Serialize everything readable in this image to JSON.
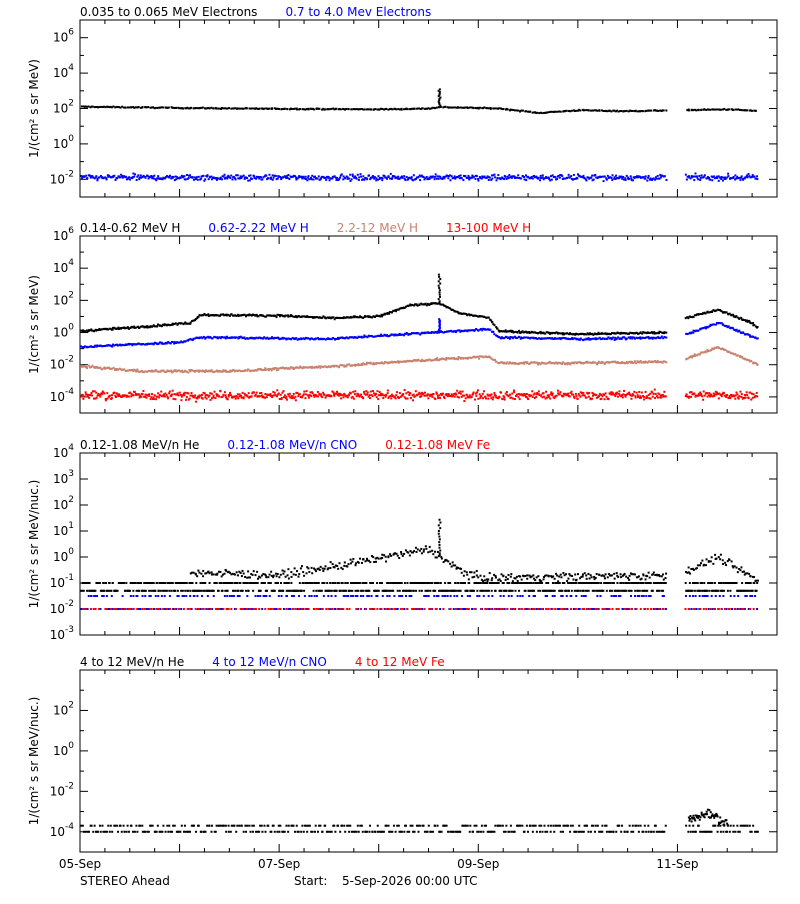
{
  "footer": {
    "spacecraft": "STEREO Ahead",
    "start_label": "Start:",
    "start_value": "5-Sep-2026 00:00 UTC"
  },
  "x_axis": {
    "start_day": "05-Sep",
    "end_day": "12-Sep",
    "labeled_ticks": [
      "05-Sep",
      "07-Sep",
      "09-Sep",
      "11-Sep"
    ],
    "minor_ticks_per_day": 4
  },
  "data_gaps": [
    {
      "from_day": 5.88,
      "to_day": 6.07
    },
    {
      "from_day": 6.8,
      "to_day": 7.0
    }
  ],
  "colors": {
    "black": "#000000",
    "blue": "#0000ff",
    "tan": "#c8826e",
    "red": "#ff0000"
  },
  "chart_data": [
    {
      "type": "scatter",
      "ylabel": "1/(cm² s sr MeV)",
      "yscale": "log",
      "ylim_exp": [
        -3,
        7
      ],
      "tick_exps": [
        -2,
        0,
        2,
        4,
        6
      ],
      "legend": [
        {
          "text": "0.035 to 0.065 MeV Electrons",
          "color": "#000000"
        },
        {
          "text": "0.7 to 4.0 Mev Electrons",
          "color": "#0000ff"
        }
      ],
      "series": [
        {
          "color": "#000000",
          "style": "band",
          "jitter": 0.03,
          "count": 500,
          "profile": [
            [
              0,
              2.1
            ],
            [
              1.5,
              2.0
            ],
            [
              3.0,
              1.95
            ],
            [
              3.5,
              2.0
            ],
            [
              3.6,
              2.08
            ],
            [
              4.2,
              2.0
            ],
            [
              4.6,
              1.75
            ],
            [
              5.0,
              1.9
            ],
            [
              5.5,
              1.85
            ],
            [
              6.0,
              1.9
            ],
            [
              6.5,
              1.95
            ],
            [
              7.0,
              1.8
            ]
          ],
          "spike": {
            "day": 3.6,
            "height": 1.0
          }
        },
        {
          "color": "#0000ff",
          "style": "scatter",
          "jitter": 0.15,
          "count": 800,
          "profile": [
            [
              0,
              -1.9
            ],
            [
              7.0,
              -1.9
            ]
          ]
        }
      ]
    },
    {
      "type": "scatter",
      "ylabel": "1/(cm² s sr MeV)",
      "yscale": "log",
      "ylim_exp": [
        -5,
        6
      ],
      "tick_exps": [
        -4,
        -2,
        0,
        2,
        4,
        6
      ],
      "legend": [
        {
          "text": "0.14-0.62 MeV H",
          "color": "#000000"
        },
        {
          "text": "0.62-2.22 MeV H",
          "color": "#0000ff"
        },
        {
          "text": "2.2-12 MeV H",
          "color": "#c8826e"
        },
        {
          "text": "13-100 MeV H",
          "color": "#ff0000"
        }
      ],
      "series": [
        {
          "color": "#000000",
          "style": "band",
          "jitter": 0.06,
          "count": 700,
          "profile": [
            [
              0,
              0.1
            ],
            [
              0.5,
              0.3
            ],
            [
              1.1,
              0.6
            ],
            [
              1.2,
              1.1
            ],
            [
              2.0,
              1.05
            ],
            [
              2.5,
              0.9
            ],
            [
              3.0,
              1.0
            ],
            [
              3.3,
              1.7
            ],
            [
              3.6,
              1.8
            ],
            [
              3.8,
              1.2
            ],
            [
              4.1,
              0.9
            ],
            [
              4.2,
              0.1
            ],
            [
              5.0,
              -0.1
            ],
            [
              5.9,
              0.0
            ],
            [
              6.0,
              0.8
            ],
            [
              6.4,
              1.4
            ],
            [
              6.7,
              0.7
            ],
            [
              6.8,
              0.3
            ],
            [
              7.0,
              0.6
            ]
          ],
          "spike": {
            "day": 3.6,
            "height": 1.8
          }
        },
        {
          "color": "#0000ff",
          "style": "band",
          "jitter": 0.06,
          "count": 700,
          "profile": [
            [
              0,
              -0.9
            ],
            [
              1.0,
              -0.6
            ],
            [
              1.2,
              -0.3
            ],
            [
              2.5,
              -0.4
            ],
            [
              3.0,
              -0.2
            ],
            [
              3.5,
              0.0
            ],
            [
              4.1,
              0.2
            ],
            [
              4.2,
              -0.3
            ],
            [
              5.0,
              -0.4
            ],
            [
              6.0,
              -0.3
            ],
            [
              6.4,
              0.6
            ],
            [
              6.8,
              -0.4
            ],
            [
              7.0,
              -0.1
            ]
          ],
          "spike": {
            "day": 3.6,
            "height": 0.8
          }
        },
        {
          "color": "#c8826e",
          "style": "band",
          "jitter": 0.07,
          "count": 700,
          "profile": [
            [
              0,
              -2.1
            ],
            [
              0.6,
              -2.4
            ],
            [
              1.5,
              -2.4
            ],
            [
              2.5,
              -2.1
            ],
            [
              3.5,
              -1.7
            ],
            [
              4.1,
              -1.5
            ],
            [
              4.2,
              -1.9
            ],
            [
              5.0,
              -1.9
            ],
            [
              6.0,
              -1.8
            ],
            [
              6.4,
              -0.9
            ],
            [
              6.8,
              -2.0
            ],
            [
              7.0,
              -1.9
            ]
          ]
        },
        {
          "color": "#ff0000",
          "style": "scatter",
          "jitter": 0.25,
          "count": 900,
          "profile": [
            [
              0,
              -3.9
            ],
            [
              7.0,
              -3.9
            ]
          ]
        }
      ]
    },
    {
      "type": "scatter",
      "ylabel": "1/(cm² s sr MeV/nuc.)",
      "yscale": "log",
      "ylim_exp": [
        -3,
        4
      ],
      "tick_exps": [
        -3,
        -2,
        -1,
        0,
        1,
        2,
        3,
        4
      ],
      "legend": [
        {
          "text": "0.12-1.08 MeV/n He",
          "color": "#000000"
        },
        {
          "text": "0.12-1.08 MeV/n CNO",
          "color": "#0000ff"
        },
        {
          "text": "0.12-1.08 MeV Fe",
          "color": "#ff0000"
        }
      ],
      "series": [
        {
          "color": "#000000",
          "style": "levels",
          "levels": [
            -1.3,
            -1.0
          ],
          "count": 900,
          "profile": [
            [
              0,
              -1.3
            ],
            [
              7.0,
              -1.3
            ]
          ]
        },
        {
          "color": "#000000",
          "style": "scatter",
          "jitter": 0.15,
          "count": 450,
          "profile": [
            [
              1.1,
              -0.6
            ],
            [
              2.0,
              -0.7
            ],
            [
              2.5,
              -0.4
            ],
            [
              3.5,
              0.3
            ],
            [
              3.8,
              -0.5
            ],
            [
              4.0,
              -0.8
            ],
            [
              6.0,
              -0.7
            ],
            [
              6.4,
              0.0
            ],
            [
              6.8,
              -0.9
            ]
          ],
          "spike": {
            "day": 3.6,
            "height": 1.4
          }
        },
        {
          "color": "#0000ff",
          "style": "levels",
          "levels": [
            -2.0,
            -1.5
          ],
          "count": 400,
          "profile": [
            [
              0,
              -2.0
            ],
            [
              7.0,
              -2.0
            ]
          ]
        },
        {
          "color": "#ff0000",
          "style": "levels",
          "levels": [
            -2.0
          ],
          "count": 200,
          "profile": [
            [
              0,
              -2.0
            ],
            [
              7.0,
              -2.0
            ]
          ]
        }
      ]
    },
    {
      "type": "scatter",
      "ylabel": "1/(cm² s sr MeV/nuc.)",
      "yscale": "log",
      "ylim_exp": [
        -5,
        4
      ],
      "tick_exps": [
        -4,
        -2,
        0,
        2
      ],
      "legend": [
        {
          "text": "4 to 12 MeV/n He",
          "color": "#000000"
        },
        {
          "text": "4 to 12 MeV/n CNO",
          "color": "#0000ff"
        },
        {
          "text": "4 to 12 MeV Fe",
          "color": "#ff0000"
        }
      ],
      "series": [
        {
          "color": "#000000",
          "style": "levels",
          "levels": [
            -4.0,
            -3.7
          ],
          "count": 500,
          "profile": [
            [
              0,
              -4.0
            ],
            [
              7.0,
              -4.0
            ]
          ]
        },
        {
          "color": "#000000",
          "style": "scatter",
          "jitter": 0.2,
          "count": 60,
          "profile": [
            [
              6.1,
              -3.4
            ],
            [
              6.3,
              -3.1
            ],
            [
              6.5,
              -3.6
            ]
          ]
        }
      ]
    }
  ]
}
